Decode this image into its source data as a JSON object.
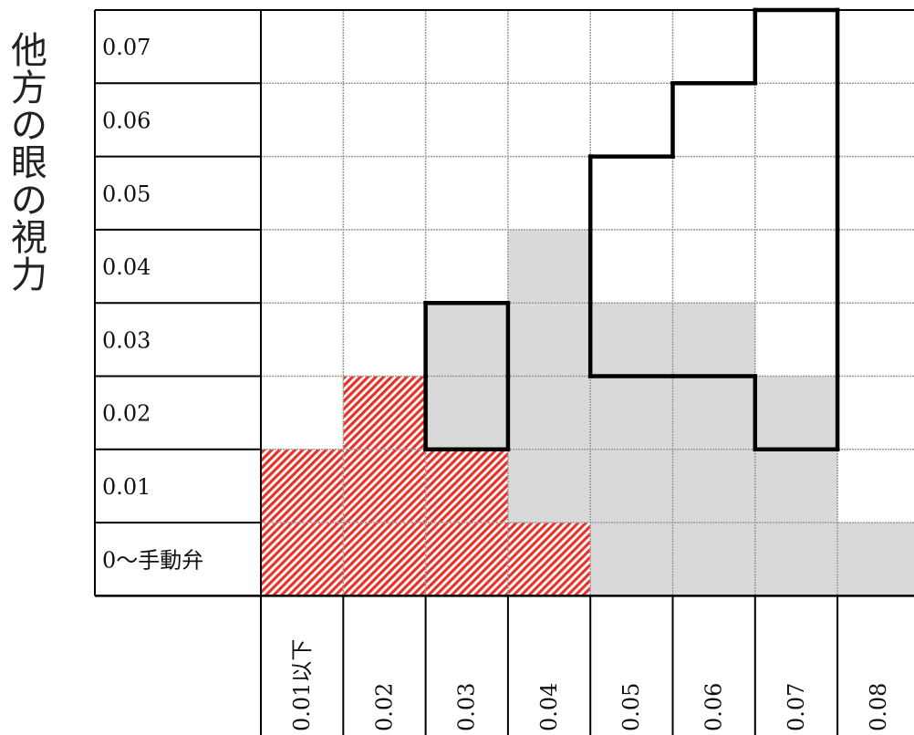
{
  "figure": {
    "y_axis_title": "他方の眼の視力",
    "row_labels": [
      "0.07",
      "0.06",
      "0.05",
      "0.04",
      "0.03",
      "0.02",
      "0.01",
      "0〜手動弁"
    ],
    "column_labels": [
      "0.01以下",
      "0.02",
      "0.03",
      "0.04",
      "0.05",
      "0.06",
      "0.07",
      "0.08"
    ],
    "fills": {
      "red_hatched": [
        [
          1,
          5
        ],
        [
          0,
          6
        ],
        [
          1,
          6
        ],
        [
          2,
          6
        ],
        [
          0,
          7
        ],
        [
          1,
          7
        ],
        [
          2,
          7
        ],
        [
          3,
          7
        ]
      ],
      "gray": [
        [
          3,
          3
        ],
        [
          2,
          4
        ],
        [
          3,
          4
        ],
        [
          4,
          4
        ],
        [
          5,
          4
        ],
        [
          2,
          5
        ],
        [
          3,
          5
        ],
        [
          4,
          5
        ],
        [
          5,
          5
        ],
        [
          6,
          5
        ],
        [
          3,
          6
        ],
        [
          4,
          6
        ],
        [
          5,
          6
        ],
        [
          6,
          6
        ],
        [
          4,
          7
        ],
        [
          5,
          7
        ],
        [
          6,
          7
        ],
        [
          7,
          7
        ]
      ]
    },
    "outlined_regions": [
      [
        [
          2,
          4
        ],
        [
          2,
          5
        ]
      ],
      [
        [
          6,
          0
        ],
        [
          5,
          1
        ],
        [
          6,
          1
        ],
        [
          4,
          2
        ],
        [
          5,
          2
        ],
        [
          6,
          2
        ],
        [
          4,
          3
        ],
        [
          5,
          3
        ],
        [
          6,
          3
        ],
        [
          4,
          4
        ],
        [
          5,
          4
        ],
        [
          6,
          4
        ],
        [
          6,
          5
        ]
      ]
    ],
    "colors": {
      "gray_fill": "#d9d9d9",
      "hatch_red": "#e8332a",
      "grid_line": "#9a9a9a",
      "outline": "#000000"
    }
  }
}
